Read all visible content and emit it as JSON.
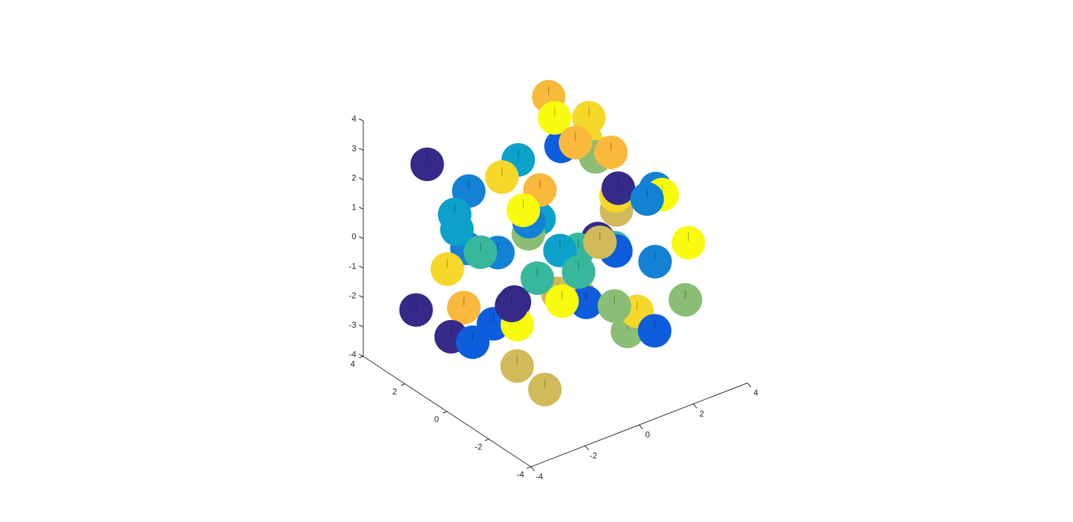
{
  "chart_data": {
    "type": "sphere3d",
    "radius": 0.62,
    "x": [
      -2.8,
      -1.5,
      0.2,
      1.8,
      2.9,
      -2.2,
      -0.6,
      1.1,
      2.4,
      -3,
      -1.1,
      0.7,
      2.1,
      -2.5,
      -0.3,
      1.5,
      3,
      -1.8,
      0.1,
      2.6,
      -2.9,
      -1,
      0.9,
      2.3,
      -2.1,
      -0.4,
      1.3,
      2.8,
      -2.6,
      -1.3,
      0.5,
      1.9,
      -1.9,
      0,
      1.6,
      3.1,
      -2.4,
      -0.8,
      1,
      2.5,
      -3.1,
      -1.6,
      0.3,
      2.2,
      -2,
      -0.2,
      1.4,
      2.7,
      -2.7,
      -1.2,
      0.6,
      2,
      -1.7,
      0.4,
      1.7,
      -0.9,
      1.2,
      -2.3,
      0.8,
      2.4
    ],
    "y": [
      2.5,
      -1.2,
      3,
      0.4,
      -2.6,
      1.1,
      -2.9,
      2.2,
      -0.8,
      -0.3,
      2.8,
      -2.1,
      1.6,
      -1.7,
      0.9,
      -2.8,
      2.4,
      -0.5,
      1.9,
      -1.4,
      2.9,
      -2.4,
      0.2,
      2.7,
      -0.9,
      1.4,
      -2.7,
      0.7,
      1.8,
      -1.9,
      2.6,
      -0.2,
      0.5,
      -1.1,
      2.1,
      -2.2,
      -2.6,
      3.1,
      -1.6,
      1.2,
      0.8,
      2.3,
      -2.5,
      -0.6,
      -2.9,
      0.6,
      1.7,
      -1.3,
      -1.4,
      1,
      -0.7,
      2.9,
      2.5,
      -2.3,
      -2.9,
      0.1,
      0.4,
      2,
      -1.8,
      1.5
    ],
    "z": [
      2.8,
      3.2,
      -1.5,
      2.4,
      0.5,
      -2.8,
      1.9,
      -0.3,
      -2.5,
      1.2,
      -0.8,
      2.9,
      -2.2,
      3.1,
      0.3,
      -1.9,
      1.6,
      -3,
      2.2,
      -0.6,
      -2.3,
      0.8,
      3.3,
      1.5,
      -1.3,
      -2.9,
      2.6,
      0.1,
      -0.5,
      1.4,
      -3.1,
      2.8,
      -2,
      0.6,
      3,
      -1.7,
      -2.6,
      0.9,
      2.3,
      -1,
      2,
      -2.4,
      1.1,
      -3.2,
      0.4,
      -1.1,
      -2.7,
      1.8,
      -0.2,
      2.5,
      -1.6,
      3.2,
      0.2,
      -0.9,
      2.7,
      1.3,
      -2.1,
      -3,
      0.7,
      3
    ],
    "colors": [
      "#352a87",
      "#f8b93c",
      "#1482d4",
      "#8abe75",
      "#f9fb0e",
      "#0d5ddc",
      "#d0ba5a",
      "#0ca1c9",
      "#f5d82a",
      "#37b89d",
      "#1482d4",
      "#352a87",
      "#f8b93c",
      "#f9fb0e",
      "#8abe75",
      "#0d5ddc",
      "#f5d82a",
      "#d0ba5a",
      "#0ca1c9",
      "#1482d4",
      "#352a87",
      "#37b89d",
      "#f8b93c",
      "#0d5ddc",
      "#f9fb0e",
      "#8abe75",
      "#1482d4",
      "#d0ba5a",
      "#f5d82a",
      "#0ca1c9",
      "#352a87",
      "#f8b93c",
      "#0d5ddc",
      "#37b89d",
      "#f9fb0e",
      "#8abe75",
      "#d0ba5a",
      "#1482d4",
      "#f5d82a",
      "#352a87",
      "#0ca1c9",
      "#f8b93c",
      "#0d5ddc",
      "#8abe75",
      "#f9fb0e",
      "#37b89d",
      "#d0ba5a",
      "#1482d4",
      "#352a87",
      "#f5d82a",
      "#0d5ddc",
      "#f8b93c",
      "#0ca1c9",
      "#8abe75",
      "#f9fb0e",
      "#1482d4",
      "#d0ba5a",
      "#352a87",
      "#37b89d",
      "#f5d82a"
    ],
    "xlim": [
      -4,
      4
    ],
    "ylim": [
      -4,
      4
    ],
    "zlim": [
      -4,
      4
    ],
    "xticks": [
      -4,
      -2,
      0,
      2,
      4
    ],
    "yticks": [
      -4,
      -2,
      0,
      2,
      4
    ],
    "zticks": [
      -4,
      -3,
      -2,
      -1,
      0,
      1,
      2,
      3,
      4
    ]
  }
}
